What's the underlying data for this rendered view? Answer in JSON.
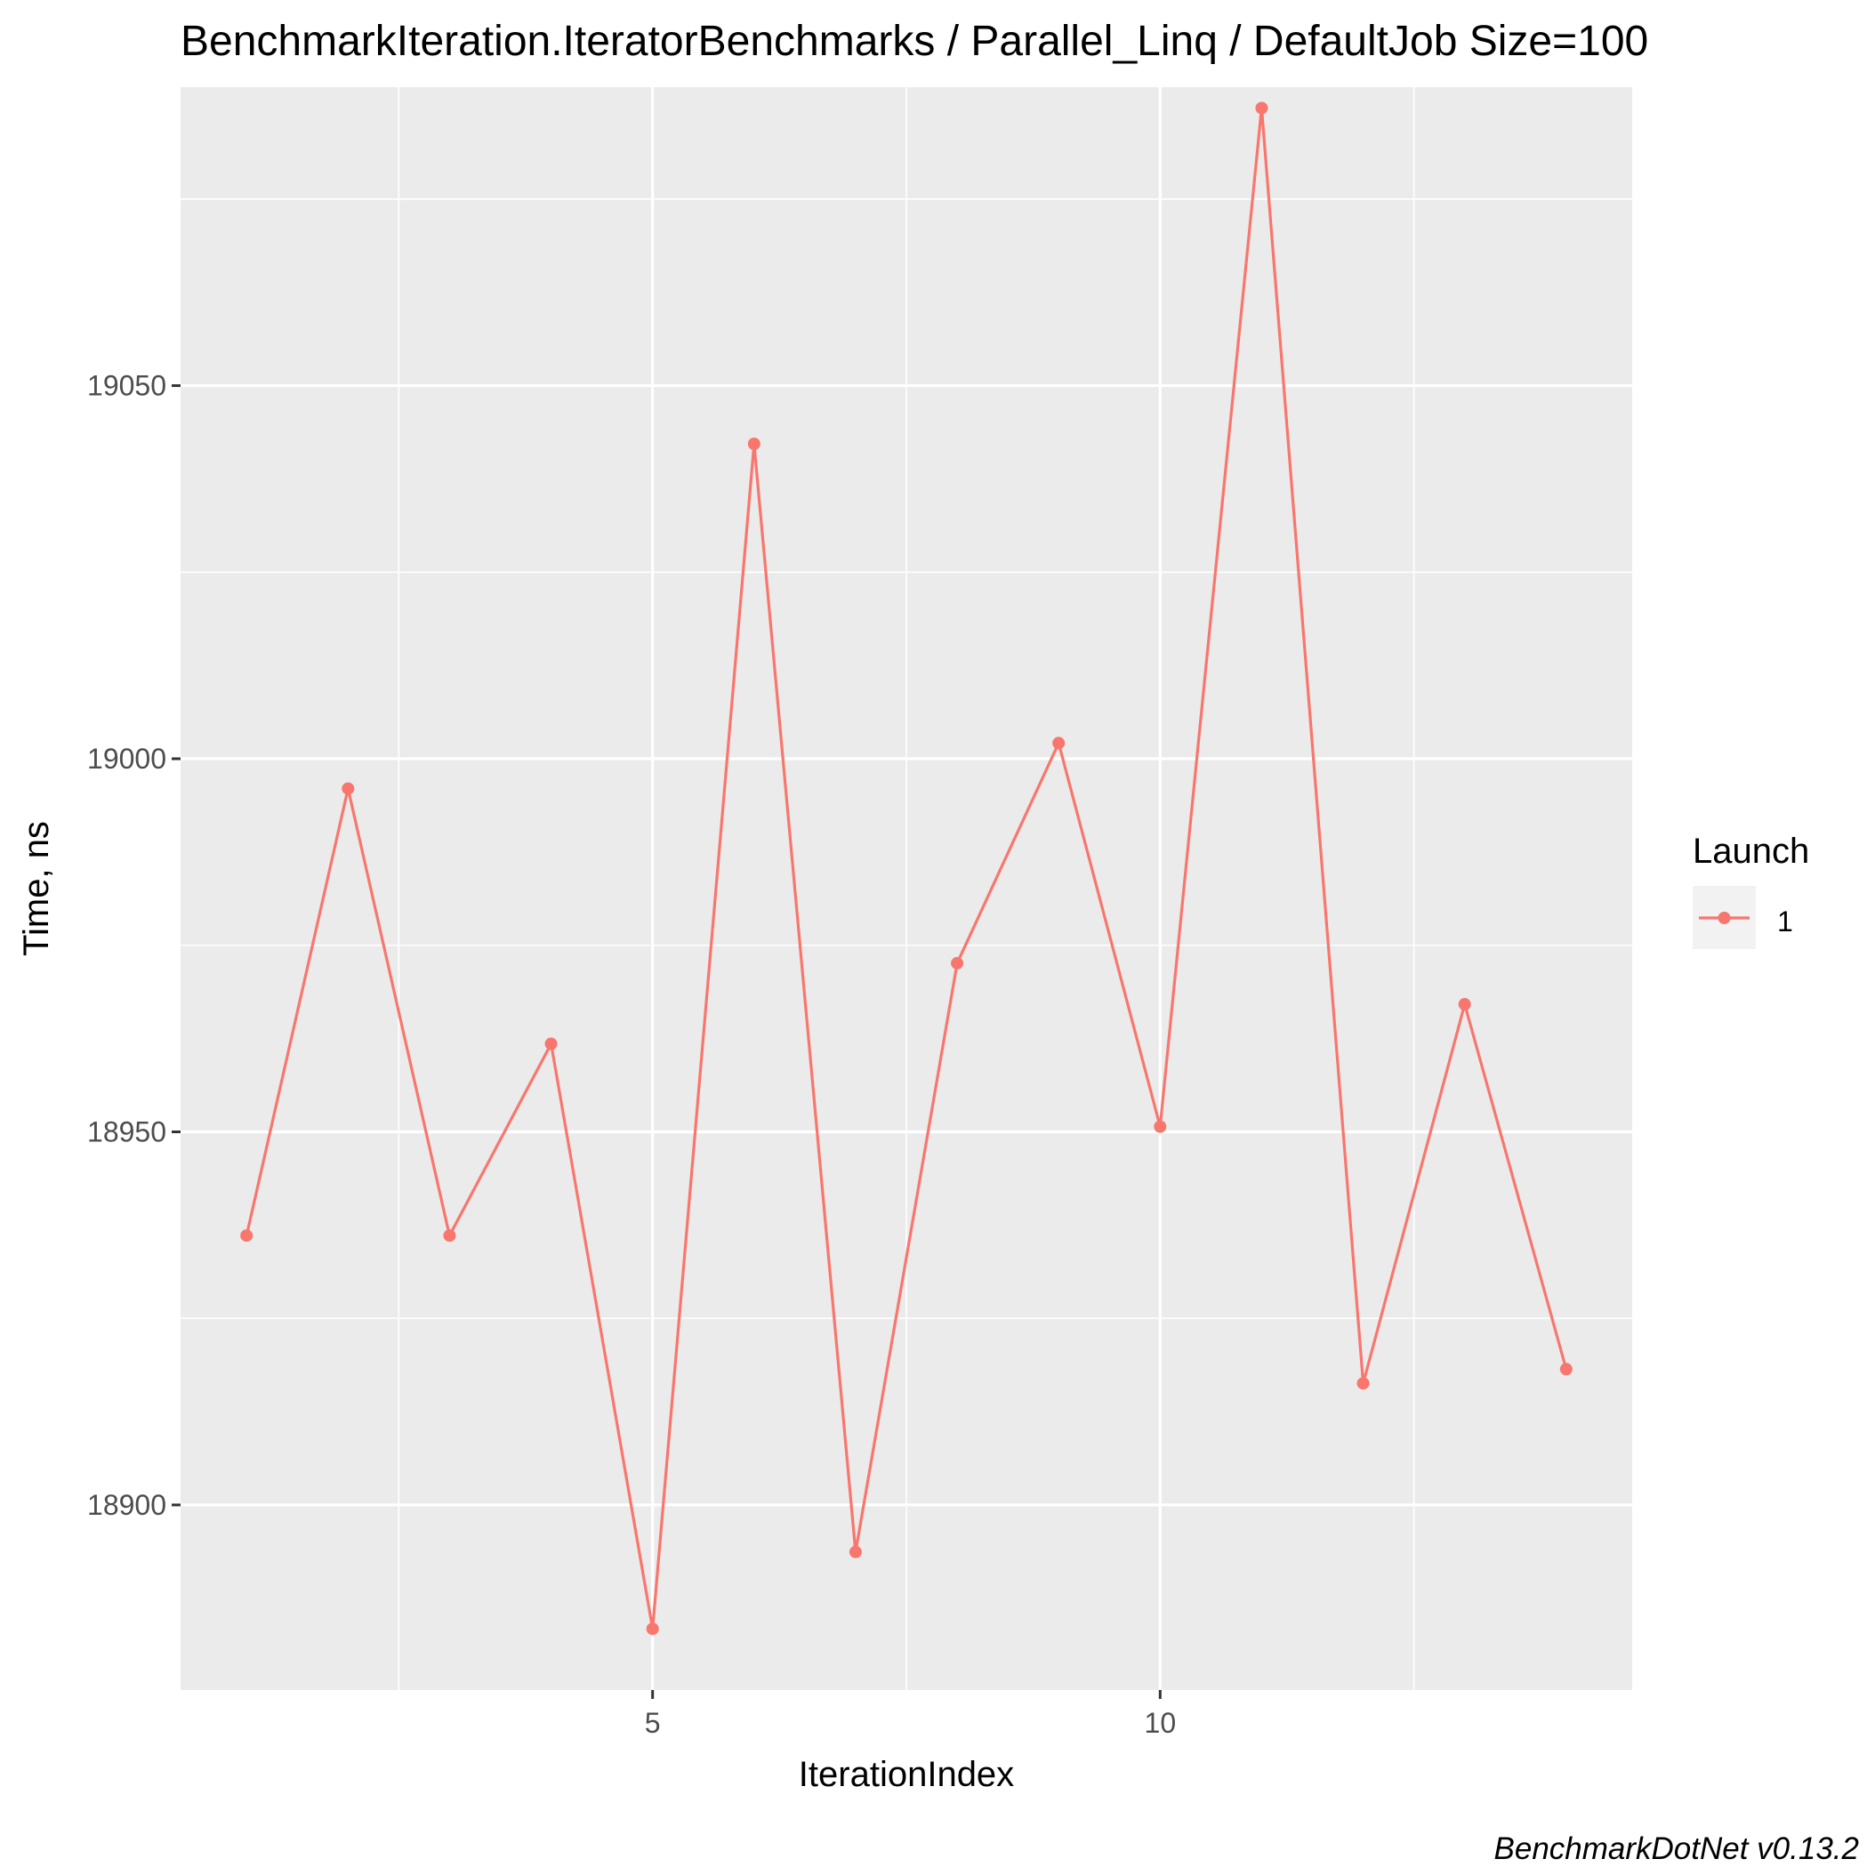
{
  "chart_data": {
    "type": "line",
    "title": "BenchmarkIteration.IteratorBenchmarks / Parallel_Linq / DefaultJob Size=100",
    "xlabel": "IterationIndex",
    "ylabel": "Time, ns",
    "caption": "BenchmarkDotNet v0.13.2",
    "xlim": [
      0.35,
      14.65
    ],
    "ylim": [
      18875.2,
      19090.0
    ],
    "x_ticks": [
      5,
      10
    ],
    "x_tick_labels": [
      "5",
      "10"
    ],
    "y_ticks": [
      18900,
      18950,
      19000,
      19050
    ],
    "y_tick_labels": [
      "18900",
      "18950",
      "19000",
      "19050"
    ],
    "grid": true,
    "legend": {
      "title": "Launch",
      "position": "right",
      "entries": [
        "1"
      ]
    },
    "series": [
      {
        "name": "1",
        "color": "#F8766D",
        "x": [
          1,
          2,
          3,
          4,
          5,
          6,
          7,
          8,
          9,
          10,
          11,
          12,
          13,
          14
        ],
        "values": [
          18936.1,
          18996.0,
          18936.1,
          18961.8,
          18883.4,
          19042.2,
          18893.7,
          18972.6,
          19002.1,
          18950.7,
          19087.2,
          18916.3,
          18967.1,
          18918.2
        ]
      }
    ]
  }
}
